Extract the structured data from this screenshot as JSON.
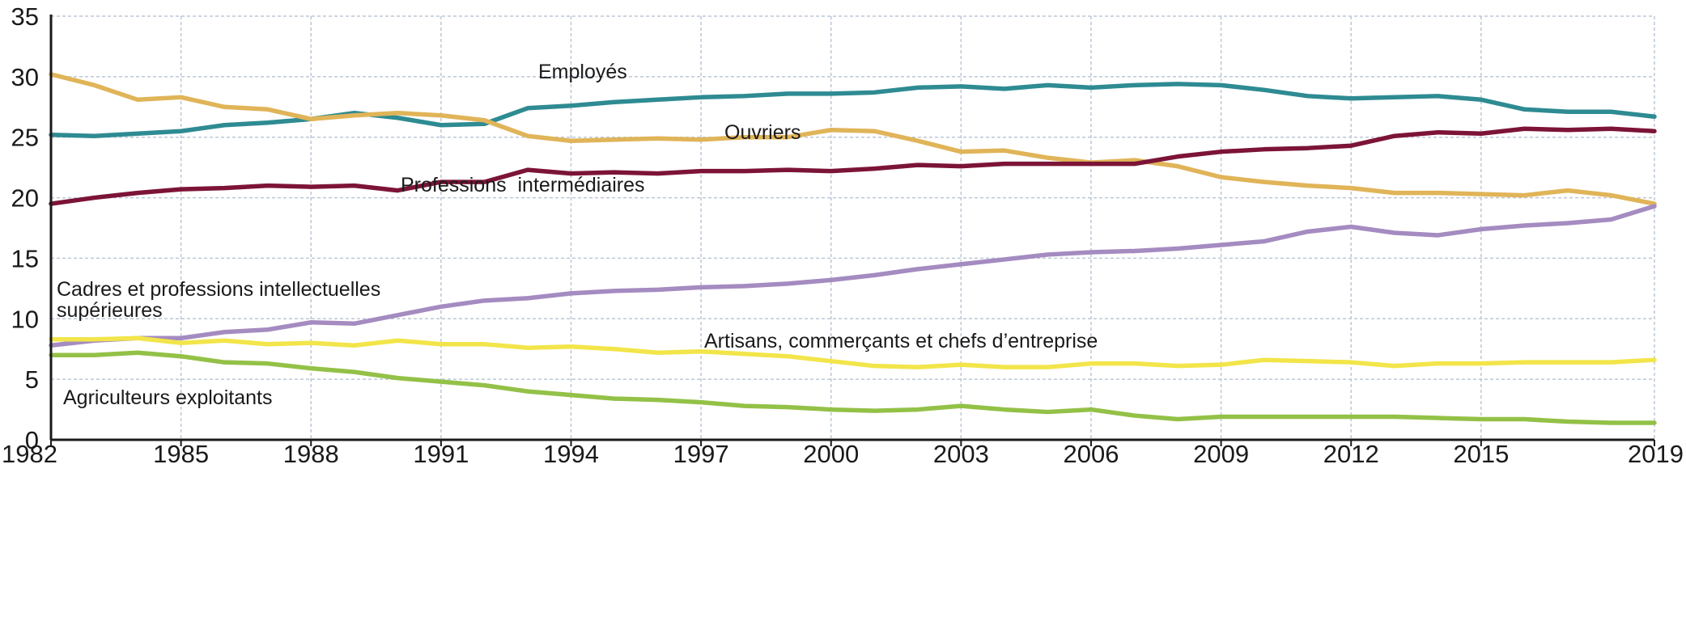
{
  "chart_data": {
    "type": "line",
    "title": "",
    "xlabel": "",
    "ylabel": "",
    "xlim": [
      1982,
      2019
    ],
    "ylim": [
      0,
      35
    ],
    "grid": true,
    "x_ticks": [
      "1982",
      "1985",
      "1988",
      "1991",
      "1994",
      "1997",
      "2000",
      "2003",
      "2006",
      "2009",
      "2012",
      "2015",
      "2019"
    ],
    "y_ticks": [
      "0",
      "5",
      "10",
      "15",
      "20",
      "25",
      "30",
      "35"
    ],
    "x": [
      1982,
      1983,
      1984,
      1985,
      1986,
      1987,
      1988,
      1989,
      1990,
      1991,
      1992,
      1993,
      1994,
      1995,
      1996,
      1997,
      1998,
      1999,
      2000,
      2001,
      2002,
      2003,
      2004,
      2005,
      2006,
      2007,
      2008,
      2009,
      2010,
      2011,
      2012,
      2013,
      2014,
      2015,
      2016,
      2017,
      2018,
      2019
    ],
    "series": [
      {
        "name": "Employés",
        "color": "#2e8b92",
        "values": [
          25.2,
          25.1,
          25.3,
          25.5,
          26.0,
          26.2,
          26.5,
          27.0,
          26.6,
          26.0,
          26.1,
          27.4,
          27.6,
          27.9,
          28.1,
          28.3,
          28.4,
          28.6,
          28.6,
          28.7,
          29.1,
          29.2,
          29.0,
          29.3,
          29.1,
          29.3,
          29.4,
          29.3,
          28.9,
          28.4,
          28.2,
          28.3,
          28.4,
          28.1,
          27.3,
          27.1,
          27.1,
          26.7
        ]
      },
      {
        "name": "Ouvriers",
        "color": "#e0b458",
        "values": [
          30.2,
          29.3,
          28.1,
          28.3,
          27.5,
          27.3,
          26.5,
          26.8,
          27.0,
          26.8,
          26.4,
          25.1,
          24.7,
          24.8,
          24.9,
          24.8,
          25.0,
          25.0,
          25.6,
          25.5,
          24.7,
          23.8,
          23.9,
          23.3,
          22.9,
          23.1,
          22.6,
          21.7,
          21.3,
          21.0,
          20.8,
          20.4,
          20.4,
          20.3,
          20.2,
          20.6,
          20.2,
          19.5
        ]
      },
      {
        "name": "Professions intermédiaires",
        "color": "#7c1437",
        "values": [
          19.5,
          20.0,
          20.4,
          20.7,
          20.8,
          21.0,
          20.9,
          21.0,
          20.6,
          21.3,
          21.3,
          22.3,
          22.0,
          22.1,
          22.0,
          22.2,
          22.2,
          22.3,
          22.2,
          22.4,
          22.7,
          22.6,
          22.8,
          22.8,
          22.8,
          22.8,
          23.4,
          23.8,
          24.0,
          24.1,
          24.3,
          25.1,
          25.4,
          25.3,
          25.7,
          25.6,
          25.7,
          25.5
        ]
      },
      {
        "name": "Cadres et professions intellectuelles supérieures",
        "color": "#a48bc0",
        "values": [
          7.8,
          8.2,
          8.4,
          8.4,
          8.9,
          9.1,
          9.7,
          9.6,
          10.3,
          11.0,
          11.5,
          11.7,
          12.1,
          12.3,
          12.4,
          12.6,
          12.7,
          12.9,
          13.2,
          13.6,
          14.1,
          14.5,
          14.9,
          15.3,
          15.5,
          15.6,
          15.8,
          16.1,
          16.4,
          17.2,
          17.6,
          17.1,
          16.9,
          17.4,
          17.7,
          17.9,
          18.2,
          19.3
        ]
      },
      {
        "name": "Artisans, commerçants et chefs d’entreprise",
        "color": "#f2e54a",
        "values": [
          8.3,
          8.3,
          8.4,
          8.0,
          8.2,
          7.9,
          8.0,
          7.8,
          8.2,
          7.9,
          7.9,
          7.6,
          7.7,
          7.5,
          7.2,
          7.3,
          7.1,
          6.9,
          6.5,
          6.1,
          6.0,
          6.2,
          6.0,
          6.0,
          6.3,
          6.3,
          6.1,
          6.2,
          6.6,
          6.5,
          6.4,
          6.1,
          6.3,
          6.3,
          6.4,
          6.4,
          6.4,
          6.6
        ]
      },
      {
        "name": "Agriculteurs exploitants",
        "color": "#93c147",
        "values": [
          7.0,
          7.0,
          7.2,
          6.9,
          6.4,
          6.3,
          5.9,
          5.6,
          5.1,
          4.8,
          4.5,
          4.0,
          3.7,
          3.4,
          3.3,
          3.1,
          2.8,
          2.7,
          2.5,
          2.4,
          2.5,
          2.8,
          2.5,
          2.3,
          2.5,
          2.0,
          1.7,
          1.9,
          1.9,
          1.9,
          1.9,
          1.9,
          1.8,
          1.7,
          1.7,
          1.5,
          1.4,
          1.4
        ]
      }
    ],
    "annotations": [
      {
        "text": "Employés",
        "series": 0
      },
      {
        "text": "Ouvriers",
        "series": 1
      },
      {
        "text": "Professions  intermédiaires",
        "series": 2
      },
      {
        "text": "Cadres et professions intellectuelles",
        "series": 3
      },
      {
        "text": "supérieures",
        "series": 3
      },
      {
        "text": "Artisans, commerçants et chefs d’entreprise",
        "series": 4
      },
      {
        "text": "Agriculteurs exploitants",
        "series": 5
      }
    ]
  }
}
